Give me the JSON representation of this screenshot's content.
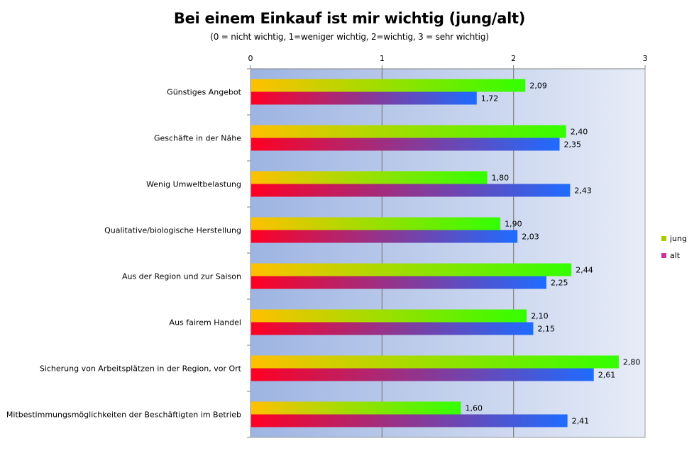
{
  "chart_data": {
    "type": "bar",
    "orientation": "horizontal",
    "title": "Bei einem Einkauf ist mir wichtig (jung/alt)",
    "subtitle": "(0 = nicht wichtig, 1=weniger wichtig, 2=wichtig, 3 = sehr wichtig)",
    "xlim": [
      0,
      3
    ],
    "xticks": [
      "0",
      "1",
      "2",
      "3"
    ],
    "grid": true,
    "legend_position": "right",
    "categories": [
      "Günstiges Angebot",
      "Geschäfte in der Nähe",
      "Wenig Umweltbelastung",
      "Qualitative/biologische Herstellung",
      "Aus der Region und zur Saison",
      "Aus fairem Handel",
      "Sicherung von Arbeitsplätzen in der Region,  vor Ort",
      "Mitbestimmungsmöglichkeiten der Beschäftigten im Betrieb"
    ],
    "series": [
      {
        "name": "jung",
        "values": [
          2.09,
          2.4,
          1.8,
          1.9,
          2.44,
          2.1,
          2.8,
          1.6
        ],
        "labels": [
          "2,09",
          "2,40",
          "1,80",
          "1,90",
          "2,44",
          "2,10",
          "2,80",
          "1,60"
        ],
        "color_start": "#ffc000",
        "color_end": "#33ff00",
        "legend_color": "#a8cc00"
      },
      {
        "name": "alt",
        "values": [
          1.72,
          2.35,
          2.43,
          2.03,
          2.25,
          2.15,
          2.61,
          2.41
        ],
        "labels": [
          "1,72",
          "2,35",
          "2,43",
          "2,03",
          "2,25",
          "2,15",
          "2,61",
          "2,41"
        ],
        "color_start": "#ff0022",
        "color_end": "#1e6cff",
        "legend_color": "#cc3399"
      }
    ]
  }
}
